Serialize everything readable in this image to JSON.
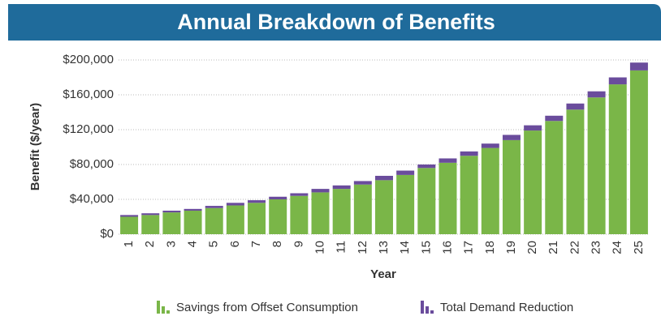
{
  "chart_data": {
    "type": "stacked_bar",
    "title": "Annual Breakdown of Benefits",
    "y_label": "Benefit ($/year)",
    "x_label": "Year",
    "categories": [
      "1",
      "2",
      "3",
      "4",
      "5",
      "6",
      "7",
      "8",
      "9",
      "10",
      "11",
      "12",
      "13",
      "14",
      "15",
      "16",
      "17",
      "18",
      "19",
      "20",
      "21",
      "22",
      "23",
      "24",
      "25"
    ],
    "series": [
      {
        "name": "Savings from Offset Consumption",
        "color": "#7ab648",
        "values": [
          20000,
          22000,
          25000,
          27000,
          30000,
          33000,
          36000,
          40000,
          44000,
          48000,
          52000,
          57000,
          62000,
          68000,
          76000,
          82000,
          90000,
          99000,
          108000,
          119000,
          130000,
          143000,
          157000,
          172000,
          188000
        ]
      },
      {
        "name": "Total Demand Reduction",
        "color": "#6a4c9c",
        "values": [
          2000,
          2000,
          2000,
          2000,
          2500,
          3000,
          3000,
          3000,
          3000,
          4000,
          4000,
          4000,
          5000,
          5000,
          4000,
          5000,
          5000,
          5000,
          6000,
          6000,
          6000,
          7000,
          7000,
          8000,
          9000
        ]
      }
    ],
    "ylim": [
      0,
      200000
    ],
    "yticks": [
      {
        "value": 0,
        "label": "$0"
      },
      {
        "value": 40000,
        "label": "$40,000"
      },
      {
        "value": 80000,
        "label": "$80,000"
      },
      {
        "value": 120000,
        "label": "$120,000"
      },
      {
        "value": 160000,
        "label": "$160,000"
      },
      {
        "value": 200000,
        "label": "$200,000"
      }
    ],
    "grid": true
  }
}
